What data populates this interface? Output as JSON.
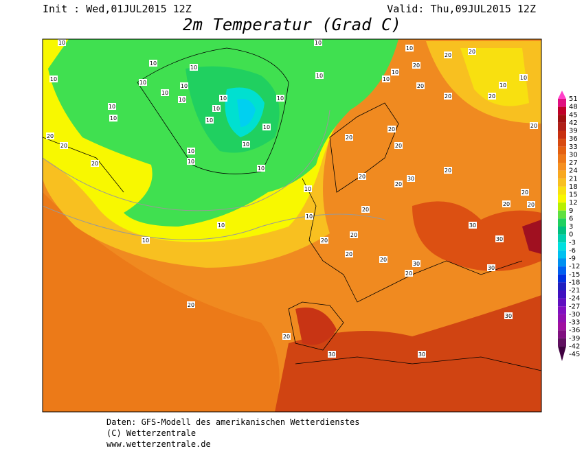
{
  "header": {
    "init": "Init : Wed,01JUL2015 12Z",
    "valid": "Valid: Thu,09JUL2015 12Z",
    "title": "2m Temperatur (Grad C)"
  },
  "colorbar": {
    "levels": [
      {
        "value": 51,
        "color": "#ff40c8"
      },
      {
        "value": 48,
        "color": "#e01080"
      },
      {
        "value": 45,
        "color": "#c00028"
      },
      {
        "value": 42,
        "color": "#a01010"
      },
      {
        "value": 39,
        "color": "#b02018"
      },
      {
        "value": 36,
        "color": "#c83010"
      },
      {
        "value": 33,
        "color": "#d84a10"
      },
      {
        "value": 30,
        "color": "#e46010"
      },
      {
        "value": 27,
        "color": "#ee7818"
      },
      {
        "value": 24,
        "color": "#f69020"
      },
      {
        "value": 21,
        "color": "#f8a820"
      },
      {
        "value": 18,
        "color": "#f8c020"
      },
      {
        "value": 15,
        "color": "#f8e010"
      },
      {
        "value": 12,
        "color": "#f8f800"
      },
      {
        "value": 9,
        "color": "#b8f000"
      },
      {
        "value": 6,
        "color": "#60e040"
      },
      {
        "value": 3,
        "color": "#20d060"
      },
      {
        "value": 0,
        "color": "#00c080"
      },
      {
        "value": -3,
        "color": "#00d0b0"
      },
      {
        "value": -6,
        "color": "#00e0e0"
      },
      {
        "value": -9,
        "color": "#00c0f0"
      },
      {
        "value": -12,
        "color": "#0090f0"
      },
      {
        "value": -15,
        "color": "#0060f0"
      },
      {
        "value": -18,
        "color": "#0030e0"
      },
      {
        "value": -21,
        "color": "#2020c0"
      },
      {
        "value": -24,
        "color": "#4010c0"
      },
      {
        "value": -27,
        "color": "#6010c0"
      },
      {
        "value": -30,
        "color": "#8010c0"
      },
      {
        "value": -33,
        "color": "#9010b0"
      },
      {
        "value": -36,
        "color": "#a010a0"
      },
      {
        "value": -39,
        "color": "#801080"
      },
      {
        "value": -42,
        "color": "#601060"
      },
      {
        "value": -45,
        "color": "#400040"
      }
    ]
  },
  "contour_labels": [
    10,
    10,
    10,
    10,
    10,
    10,
    10,
    10,
    10,
    10,
    10,
    10,
    10,
    10,
    10,
    10,
    10,
    10,
    10,
    10,
    10,
    10,
    10,
    10,
    10,
    10,
    10,
    10,
    20,
    20,
    20,
    20,
    20,
    20,
    20,
    20,
    20,
    20,
    20,
    20,
    20,
    20,
    20,
    20,
    20,
    20,
    20,
    20,
    20,
    20,
    20,
    20,
    20,
    20,
    20,
    10,
    10,
    30,
    30,
    30,
    30,
    30,
    30,
    30,
    30
  ],
  "footer": {
    "line1": "Daten: GFS-Modell des amerikanischen Wetterdienstes",
    "line2": "(C) Wetterzentrale",
    "line3": "www.wetterzentrale.de"
  }
}
